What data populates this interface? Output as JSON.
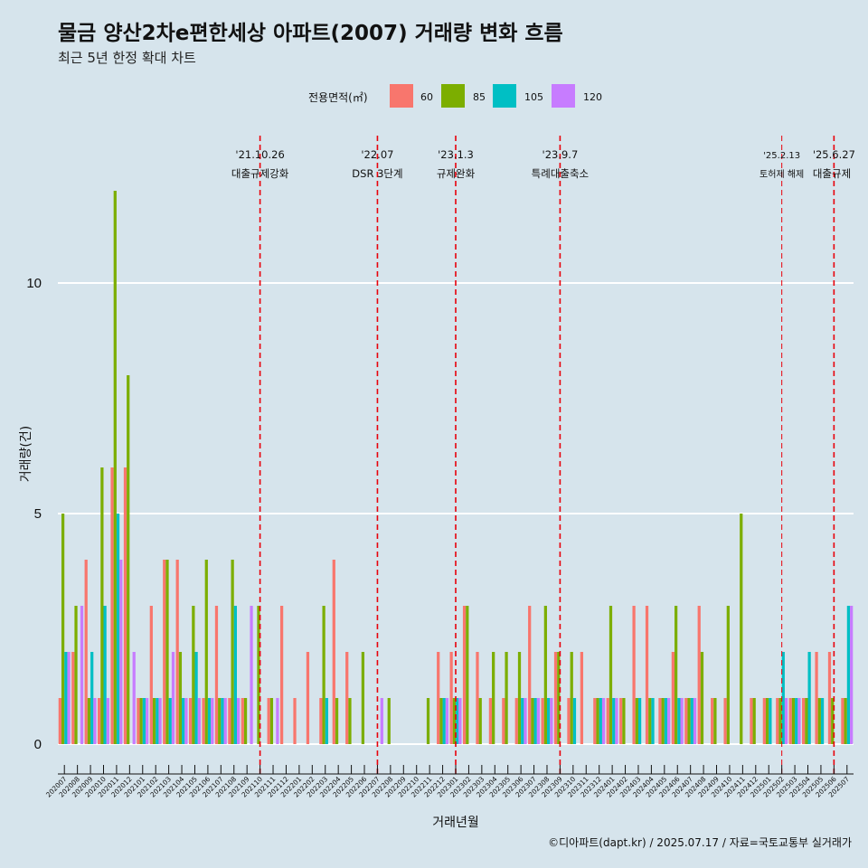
{
  "chart_data": {
    "type": "bar",
    "title": "물금 양산2차e편한세상 아파트(2007) 거래량 변화 흐름",
    "subtitle": "최근 5년 한정 확대 차트",
    "xlabel": "거래년월",
    "ylabel": "거래량(건)",
    "ylim": [
      0,
      12
    ],
    "yticks": [
      0,
      5,
      10
    ],
    "legend": {
      "title": "전용면적(㎡)",
      "position": "top",
      "entries": [
        "60",
        "85",
        "105",
        "120"
      ]
    },
    "colors": {
      "60": "#f8766d",
      "85": "#7cae00",
      "105": "#00bfc4",
      "120": "#c77cff"
    },
    "grid": true,
    "categories": [
      "202007",
      "202008",
      "202009",
      "202010",
      "202011",
      "202012",
      "202101",
      "202102",
      "202103",
      "202104",
      "202105",
      "202106",
      "202107",
      "202108",
      "202109",
      "202110",
      "202111",
      "202112",
      "202201",
      "202202",
      "202203",
      "202204",
      "202205",
      "202206",
      "202207",
      "202208",
      "202209",
      "202210",
      "202211",
      "202212",
      "202301",
      "202302",
      "202303",
      "202304",
      "202305",
      "202306",
      "202307",
      "202308",
      "202309",
      "202310",
      "202311",
      "202312",
      "202401",
      "202402",
      "202403",
      "202404",
      "202405",
      "202406",
      "202407",
      "202408",
      "202409",
      "202410",
      "202411",
      "202412",
      "202501",
      "202502",
      "202503",
      "202504",
      "202505",
      "202506",
      "202507"
    ],
    "series": [
      {
        "name": "60",
        "values": [
          1,
          2,
          4,
          1,
          6,
          6,
          1,
          3,
          4,
          4,
          1,
          1,
          3,
          1,
          1,
          0,
          1,
          3,
          1,
          2,
          1,
          4,
          2,
          0,
          0,
          0,
          0,
          0,
          0,
          2,
          2,
          3,
          2,
          1,
          1,
          1,
          3,
          1,
          2,
          1,
          2,
          1,
          1,
          1,
          3,
          3,
          1,
          2,
          1,
          3,
          1,
          1,
          0,
          1,
          1,
          1,
          1,
          1,
          2,
          2,
          1
        ]
      },
      {
        "name": "85",
        "values": [
          5,
          3,
          1,
          6,
          12,
          8,
          1,
          1,
          4,
          2,
          3,
          4,
          1,
          4,
          1,
          3,
          1,
          0,
          0,
          0,
          3,
          1,
          1,
          2,
          0,
          1,
          0,
          0,
          1,
          1,
          1,
          3,
          1,
          2,
          2,
          2,
          1,
          3,
          2,
          2,
          0,
          1,
          3,
          1,
          1,
          1,
          1,
          3,
          1,
          2,
          1,
          3,
          5,
          1,
          1,
          1,
          1,
          1,
          1,
          1,
          1
        ]
      },
      {
        "name": "105",
        "values": [
          2,
          0,
          2,
          3,
          5,
          0,
          1,
          1,
          1,
          1,
          2,
          1,
          1,
          3,
          0,
          0,
          0,
          0,
          0,
          0,
          1,
          0,
          0,
          0,
          0,
          0,
          0,
          0,
          0,
          1,
          1,
          0,
          0,
          0,
          0,
          1,
          1,
          1,
          0,
          1,
          0,
          1,
          1,
          0,
          1,
          1,
          1,
          1,
          1,
          0,
          0,
          0,
          0,
          0,
          1,
          2,
          1,
          2,
          1,
          0,
          3
        ]
      },
      {
        "name": "120",
        "values": [
          2,
          3,
          1,
          1,
          4,
          2,
          1,
          1,
          2,
          1,
          1,
          1,
          1,
          1,
          3,
          0,
          1,
          0,
          0,
          0,
          0,
          0,
          0,
          0,
          1,
          0,
          0,
          0,
          0,
          1,
          1,
          0,
          0,
          0,
          0,
          1,
          1,
          1,
          0,
          0,
          0,
          1,
          1,
          0,
          0,
          0,
          1,
          1,
          1,
          0,
          0,
          0,
          0,
          0,
          0,
          1,
          1,
          0,
          0,
          0,
          3
        ]
      }
    ],
    "annotations": [
      {
        "index": 15,
        "date": "'21.10.26",
        "label": "대출규제강화"
      },
      {
        "index": 24,
        "date": "'22.07",
        "label": "DSR 3단계"
      },
      {
        "index": 30,
        "date": "'23.1.3",
        "label": "규제완화"
      },
      {
        "index": 38,
        "date": "'23.9.7",
        "label": "특례대출축소"
      },
      {
        "index": 55,
        "date": "'25.2.13",
        "label": "토허제 해제"
      },
      {
        "index": 59,
        "date": "'25.6.27",
        "label": "대출규제"
      }
    ],
    "caption": "©디아파트(dapt.kr) / 2025.07.17 / 자료=국토교통부 실거래가"
  }
}
